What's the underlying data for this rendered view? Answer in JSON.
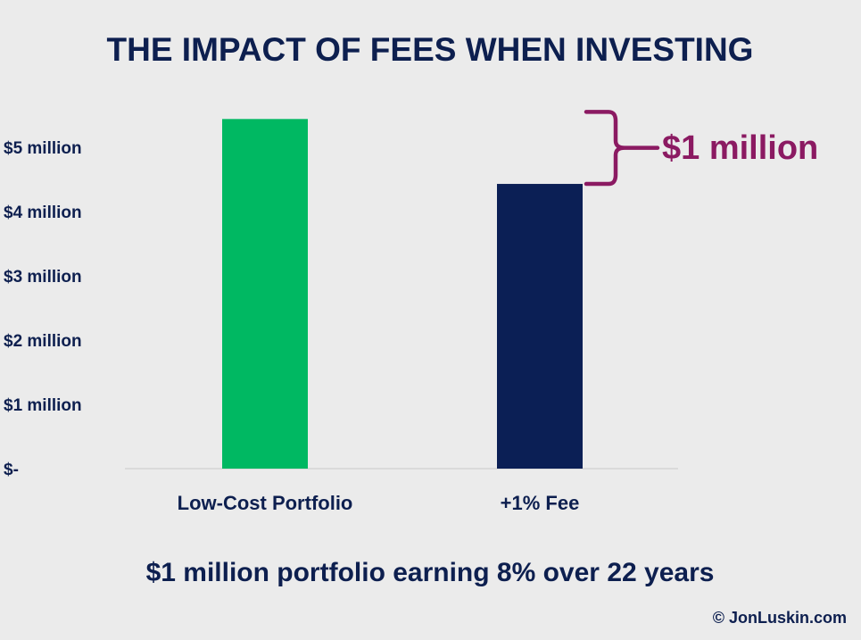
{
  "chart_data": {
    "type": "bar",
    "title": "THE IMPACT OF FEES WHEN INVESTING",
    "subtitle": "$1 million portfolio earning 8% over 22 years",
    "categories": [
      "Low-Cost Portfolio",
      "+1% Fee"
    ],
    "values": [
      5.44,
      4.43
    ],
    "units": "million USD",
    "colors": [
      "#00b862",
      "#0b1f55"
    ],
    "ylim": [
      0,
      5.5
    ],
    "yticks": [
      0,
      1,
      2,
      3,
      4,
      5
    ],
    "ytick_labels": [
      "$-",
      "$1 million",
      "$2 million",
      "$3 million",
      "$4 million",
      "$5 million"
    ],
    "grid": false,
    "annotation": {
      "text": "$1 million",
      "color": "#8b1a62"
    },
    "xlabel": "",
    "ylabel": ""
  },
  "footer": {
    "copyright": "© JonLuskin.com"
  }
}
